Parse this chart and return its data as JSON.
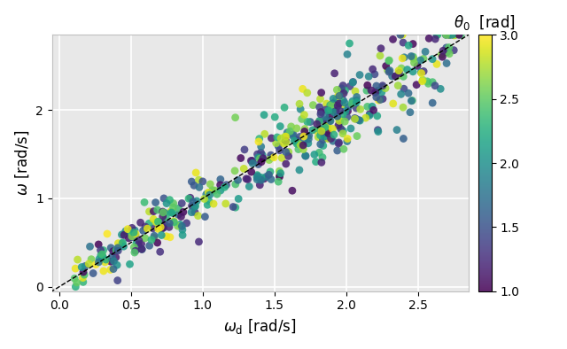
{
  "xlabel": "$\\omega_{\\mathrm{d}}$ [rad/s]",
  "ylabel": "$\\omega$ [rad/s]",
  "colorbar_label": "$\\theta_0$  [rad]",
  "xlim": [
    -0.05,
    2.85
  ],
  "ylim": [
    -0.05,
    2.85
  ],
  "xticks": [
    0.0,
    0.5,
    1.0,
    1.5,
    2.0,
    2.5
  ],
  "yticks": [
    0,
    1,
    2
  ],
  "colorbar_ticks": [
    1.0,
    1.5,
    2.0,
    2.5,
    3.0
  ],
  "vmin": 1.0,
  "vmax": 3.0,
  "cmap": "viridis",
  "marker_size": 40,
  "alpha": 0.85,
  "dashed_line_color": "black",
  "plot_bg_color": "#e8e8e8",
  "fig_bg_color": "#ffffff",
  "grid_color": "white",
  "figsize": [
    6.4,
    3.94
  ],
  "dpi": 100,
  "seed": 42,
  "n_points": 500
}
